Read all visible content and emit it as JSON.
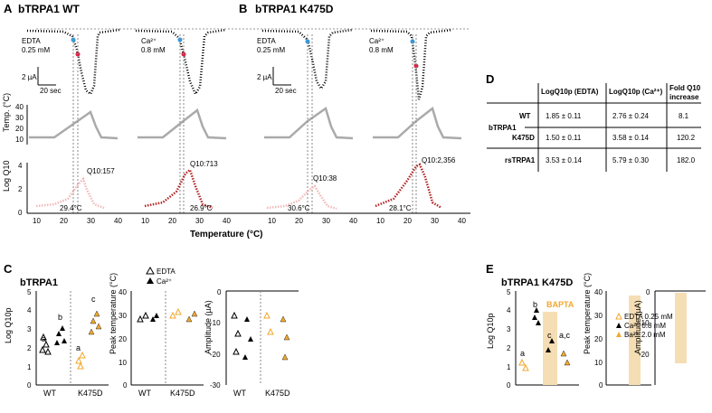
{
  "panel_letters": {
    "A": "A",
    "B": "B",
    "C": "C",
    "D": "D",
    "E": "E"
  },
  "panelA": {
    "title": "bTRPA1 WT",
    "cond1": [
      "EDTA",
      "0.25 mM"
    ],
    "cond2": [
      "Ca²⁺",
      "0.8 mM"
    ],
    "scale_current": "2 µA",
    "scale_time": "20 sec",
    "q10_1": "Q10:157",
    "temp_1": "29.4°C",
    "q10_2": "Q10:713",
    "temp_2": "26.9°C"
  },
  "panelB": {
    "title": "bTRPA1 K475D",
    "cond1": [
      "EDTA",
      "0.25 mM"
    ],
    "cond2": [
      "Ca²⁺",
      "0.8 mM"
    ],
    "scale_current": "2 µA",
    "scale_time": "20 sec",
    "q10_1": "Q10:38",
    "temp_1": "30.6°C",
    "q10_2": "Q10:2,356",
    "temp_2": "28.1°C"
  },
  "temp_axis": {
    "label": "Temp. (°C)",
    "ticks": [
      "40",
      "30",
      "20",
      "10"
    ]
  },
  "logq_axis": {
    "label": "Log Q10",
    "ticks": [
      "4",
      "2",
      "0"
    ]
  },
  "temperature_xlabel": "Temperature (°C)",
  "x_ticks_A": [
    "10",
    "20",
    "30",
    "40"
  ],
  "panelC": {
    "title": "bTRPA1",
    "ylabel1": "Log Q10p",
    "ylabel2": "Peak temperature (°C)",
    "ylabel3": "Amplitude (µA)",
    "y1ticks": [
      "5",
      "4",
      "3",
      "2",
      "1",
      "0"
    ],
    "y2ticks": [
      "40",
      "30",
      "20",
      "10",
      "0"
    ],
    "y3ticks": [
      "0",
      "-10",
      "-20",
      "-30"
    ],
    "xcats": [
      "WT",
      "K475D"
    ],
    "legend": [
      "EDTA",
      "Ca²⁺"
    ],
    "letters": [
      "a",
      "b",
      "a",
      "c"
    ]
  },
  "panelD": {
    "headers": [
      "LogQ10p (EDTA)",
      "LogQ10p (Ca²⁺)",
      "Fold Q10",
      "increase"
    ],
    "group": "bTRPA1",
    "rows": [
      {
        "label": "WT",
        "edta": "1.85 ± 0.11",
        "ca": "2.76 ± 0.24",
        "fold": "8.1"
      },
      {
        "label": "K475D",
        "edta": "1.50 ± 0.11",
        "ca": "3.58 ± 0.14",
        "fold": "120.2"
      },
      {
        "label": "rsTRPA1",
        "edta": "3.53 ± 0.14",
        "ca": "5.79 ± 0.30",
        "fold": "182.0"
      }
    ]
  },
  "panelE": {
    "title": "bTRPA1 K475D",
    "bapta": "BAPTA",
    "ylabel1": "Log Q10p",
    "ylabel2": "Peak temperature (°C)",
    "ylabel3": "Amplitude (µA)",
    "y1ticks": [
      "5",
      "4",
      "3",
      "2",
      "1",
      "0"
    ],
    "y2ticks": [
      "40",
      "30",
      "20",
      "10",
      "0"
    ],
    "y3ticks": [
      "0",
      "-10",
      "-20",
      "-30"
    ],
    "letters": [
      "a",
      "b",
      "c",
      "a,c"
    ],
    "legend": [
      "EDTA 0.25 mM",
      "Ca²⁺ 0.8 mM",
      "Ba²⁺ 2.0 mM"
    ]
  },
  "colors": {
    "wt_edta": "#f2b8b8",
    "wt_ca": "#b22222",
    "k_edta": "#f0a830",
    "highlight": "#f6deb4",
    "cyan": "#3399dd",
    "red": "#dd2244"
  }
}
